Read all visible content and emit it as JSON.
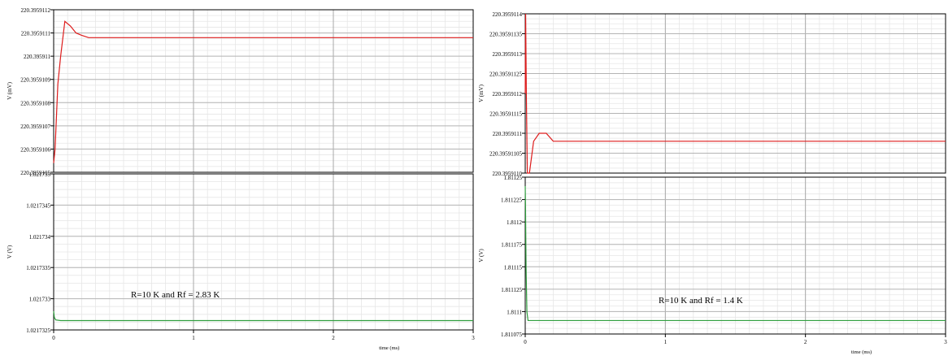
{
  "chart_data": [
    {
      "type": "line",
      "plot": "left-top",
      "ylabel": "V (mV)",
      "xlim": [
        0,
        3
      ],
      "ylim": [
        220.3959105,
        220.3959112
      ],
      "yticks": [
        "220.3959105",
        "220.3959106",
        "220.3959107",
        "220.3959108",
        "220.3959109",
        "220.395911",
        "220.3959111",
        "220.3959112"
      ],
      "series": [
        {
          "color": "#dd1c1c",
          "x": [
            0,
            0.01,
            0.03,
            0.05,
            0.08,
            0.12,
            0.16,
            0.2,
            0.25,
            0.3,
            1,
            2,
            3
          ],
          "y": [
            220.39591054,
            220.3959106,
            220.39591088,
            220.395911,
            220.39591115,
            220.39591113,
            220.3959111,
            220.39591109,
            220.39591108,
            220.39591108,
            220.39591108,
            220.39591108,
            220.39591108
          ]
        }
      ]
    },
    {
      "type": "line",
      "plot": "left-bottom",
      "ylabel": "V (V)",
      "xlabel": "time (ms)",
      "xlim": [
        0,
        3
      ],
      "xticks": [
        "0",
        "1",
        "2",
        "3"
      ],
      "ylim": [
        1.0217325,
        1.021735
      ],
      "yticks": [
        "1.0217325",
        "1.021733",
        "1.0217335",
        "1.021734",
        "1.0217345",
        "1.021735"
      ],
      "annotation": "R=10 K and Rf = 2.83 K",
      "series": [
        {
          "color": "#2f9e3e",
          "x": [
            0,
            0.005,
            0.015,
            0.05,
            1,
            2,
            3
          ],
          "y": [
            1.0217328,
            1.0217327,
            1.02173266,
            1.02173265,
            1.02173265,
            1.02173265,
            1.02173265
          ]
        }
      ]
    },
    {
      "type": "line",
      "plot": "right-top",
      "ylabel": "V (mV)",
      "xlim": [
        0,
        3
      ],
      "ylim": [
        220.395911,
        220.3959114
      ],
      "yticks": [
        "220.3959110",
        "220.39591105",
        "220.3959111",
        "220.39591115",
        "220.3959112",
        "220.39591125",
        "220.3959113",
        "220.39591135",
        "220.3959114"
      ],
      "yticklabels": [
        "220.3959110",
        "220.39591105",
        "220.3959111",
        "220.39591115",
        "220.3959112",
        "220.39591125",
        "220.3959113",
        "220.39591135",
        "220.3959114"
      ],
      "series": [
        {
          "color": "#dd1c1c",
          "x": [
            0,
            0.003,
            0.008,
            0.015,
            0.03,
            0.06,
            0.1,
            0.15,
            0.2,
            0.3,
            1,
            2,
            3
          ],
          "y": [
            220.3959112,
            220.3959114,
            220.3959112,
            220.395911,
            220.395911,
            220.39591108,
            220.3959111,
            220.3959111,
            220.39591108,
            220.39591108,
            220.39591108,
            220.39591108,
            220.39591108
          ]
        }
      ]
    },
    {
      "type": "line",
      "plot": "right-bottom",
      "ylabel": "V (V)",
      "xlabel": "time (ms)",
      "xlim": [
        0,
        3
      ],
      "xticks": [
        "0",
        "1",
        "2",
        "3"
      ],
      "ylim": [
        1.811075,
        1.81125
      ],
      "yticks": [
        "1.811075",
        "1.8111",
        "1.811125",
        "1.81115",
        "1.811175",
        "1.8112",
        "1.811225",
        "1.81125"
      ],
      "annotation": "R=10 K and Rf = 1.4 K",
      "series": [
        {
          "color": "#2f9e3e",
          "x": [
            0,
            0.002,
            0.006,
            0.012,
            0.02,
            0.03,
            0.05,
            0.1,
            1,
            2,
            3
          ],
          "y": [
            1.81124,
            1.81122,
            1.81115,
            1.8111,
            1.81109,
            1.81109,
            1.81109,
            1.81109,
            1.81109,
            1.81109,
            1.81109
          ]
        }
      ]
    }
  ]
}
